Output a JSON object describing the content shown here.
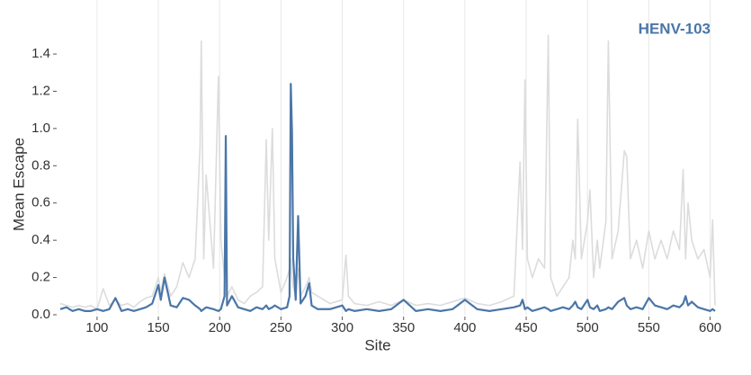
{
  "chart_data": {
    "type": "line",
    "x_label": "Site",
    "y_label": "Mean Escape",
    "x": [
      70,
      75,
      80,
      85,
      90,
      95,
      100,
      105,
      110,
      115,
      120,
      125,
      130,
      135,
      140,
      145,
      150,
      152,
      155,
      160,
      165,
      170,
      175,
      180,
      184,
      185,
      187,
      189,
      195,
      199,
      201,
      204,
      205,
      206,
      210,
      215,
      220,
      225,
      230,
      235,
      238,
      240,
      243,
      245,
      250,
      255,
      257,
      258,
      259,
      260,
      262,
      264,
      266,
      270,
      273,
      275,
      280,
      290,
      300,
      303,
      305,
      310,
      320,
      330,
      340,
      350,
      360,
      370,
      380,
      390,
      400,
      410,
      420,
      430,
      440,
      445,
      447,
      449,
      451,
      455,
      460,
      465,
      468,
      470,
      475,
      480,
      485,
      488,
      490,
      492,
      495,
      500,
      502,
      505,
      508,
      510,
      515,
      517,
      520,
      525,
      530,
      532,
      535,
      540,
      545,
      550,
      555,
      560,
      565,
      570,
      575,
      578,
      580,
      582,
      585,
      590,
      595,
      600,
      602,
      604
    ],
    "series": [
      {
        "color": "#dcdcdc",
        "values": [
          0.06,
          0.05,
          0.04,
          0.05,
          0.04,
          0.05,
          0.03,
          0.14,
          0.05,
          0.08,
          0.05,
          0.06,
          0.04,
          0.07,
          0.09,
          0.1,
          0.2,
          0.12,
          0.22,
          0.1,
          0.15,
          0.28,
          0.2,
          0.3,
          0.9,
          1.47,
          0.3,
          0.75,
          0.25,
          1.28,
          0.4,
          0.2,
          0.3,
          0.1,
          0.15,
          0.08,
          0.06,
          0.1,
          0.12,
          0.15,
          0.94,
          0.4,
          1.0,
          0.3,
          0.12,
          0.2,
          0.25,
          0.3,
          0.2,
          0.15,
          0.1,
          0.25,
          0.1,
          0.15,
          0.2,
          0.12,
          0.1,
          0.06,
          0.08,
          0.32,
          0.1,
          0.06,
          0.05,
          0.07,
          0.05,
          0.08,
          0.05,
          0.06,
          0.05,
          0.07,
          0.09,
          0.06,
          0.05,
          0.07,
          0.1,
          0.82,
          0.35,
          1.26,
          0.3,
          0.2,
          0.3,
          0.25,
          1.5,
          0.2,
          0.1,
          0.15,
          0.2,
          0.4,
          0.3,
          1.05,
          0.3,
          0.5,
          0.67,
          0.2,
          0.4,
          0.25,
          0.5,
          1.47,
          0.3,
          0.45,
          0.88,
          0.85,
          0.3,
          0.4,
          0.25,
          0.45,
          0.3,
          0.4,
          0.3,
          0.45,
          0.35,
          0.78,
          0.3,
          0.6,
          0.4,
          0.3,
          0.35,
          0.2,
          0.51,
          0.05
        ]
      },
      {
        "name": "HENV-103",
        "color": "#4a76a8",
        "values": [
          0.03,
          0.04,
          0.02,
          0.03,
          0.02,
          0.02,
          0.03,
          0.02,
          0.03,
          0.09,
          0.02,
          0.03,
          0.02,
          0.03,
          0.04,
          0.06,
          0.16,
          0.08,
          0.2,
          0.05,
          0.04,
          0.09,
          0.08,
          0.05,
          0.03,
          0.02,
          0.03,
          0.04,
          0.03,
          0.02,
          0.03,
          0.1,
          0.96,
          0.05,
          0.1,
          0.04,
          0.03,
          0.02,
          0.04,
          0.03,
          0.05,
          0.03,
          0.04,
          0.05,
          0.03,
          0.04,
          0.1,
          1.24,
          0.98,
          0.3,
          0.08,
          0.53,
          0.06,
          0.1,
          0.17,
          0.05,
          0.03,
          0.03,
          0.05,
          0.02,
          0.03,
          0.02,
          0.03,
          0.02,
          0.03,
          0.08,
          0.02,
          0.03,
          0.02,
          0.03,
          0.08,
          0.03,
          0.02,
          0.03,
          0.04,
          0.05,
          0.08,
          0.03,
          0.04,
          0.02,
          0.03,
          0.04,
          0.03,
          0.02,
          0.03,
          0.04,
          0.03,
          0.05,
          0.07,
          0.04,
          0.03,
          0.08,
          0.04,
          0.03,
          0.05,
          0.02,
          0.03,
          0.04,
          0.03,
          0.07,
          0.09,
          0.05,
          0.03,
          0.04,
          0.03,
          0.09,
          0.05,
          0.04,
          0.03,
          0.05,
          0.04,
          0.06,
          0.1,
          0.05,
          0.07,
          0.04,
          0.03,
          0.02,
          0.03,
          0.02
        ]
      }
    ],
    "xlim": [
      70,
      604
    ],
    "xticks": [
      100,
      150,
      200,
      250,
      300,
      350,
      400,
      450,
      500,
      550,
      600
    ],
    "ylim": [
      0,
      1.69
    ],
    "yticks": [
      {
        "value": 0,
        "label": "0.0"
      },
      0.2,
      0.4,
      0.6,
      0.8,
      {
        "value": 1,
        "label": "1.0"
      },
      1.2,
      1.4
    ],
    "grid": "x"
  }
}
